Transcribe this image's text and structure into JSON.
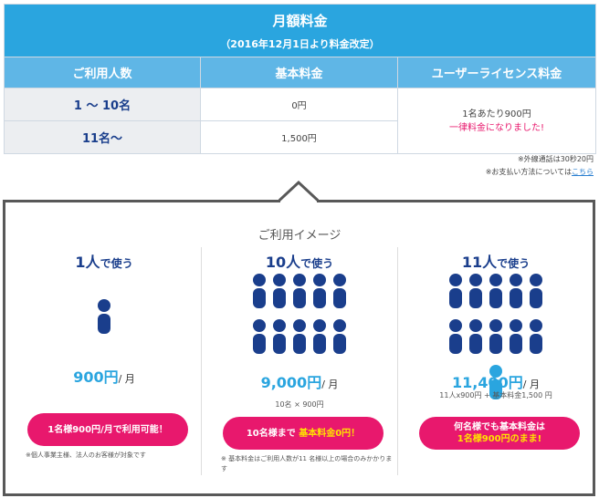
{
  "table": {
    "title": "月額料金",
    "subtitle": "（2016年12月1日より料金改定）",
    "headers": [
      "ご利用人数",
      "基本料金",
      "ユーザーライセンス料金"
    ],
    "rows": [
      {
        "users": "1 ～ 10名",
        "base": "0円"
      },
      {
        "users": "11名～",
        "base": "1,500円"
      }
    ],
    "license": {
      "line1": "1名あたり900円",
      "line2": "一律料金になりました!"
    }
  },
  "notes": {
    "line1": "※外線通話は30秒20円",
    "line2_prefix": "※お支払い方法については",
    "line2_link": "こちら"
  },
  "image_box": {
    "title": "ご利用イメージ",
    "columns": [
      {
        "num": "1人",
        "suffix": "で使う",
        "people_dark": 1,
        "people_light": 0,
        "price": "900円",
        "unit": "/ 月",
        "breakdown": "",
        "pill_line1": "1名様900円/月で利用可能！",
        "pill_prefix": "",
        "pill_highlight": "",
        "note": "※個人事業主様、法人のお客様が対象です"
      },
      {
        "num": "10人",
        "suffix": "で使う",
        "people_dark": 10,
        "people_light": 0,
        "price": "9,000円",
        "unit": "/ 月",
        "breakdown": "10名 × 900円",
        "pill_line1": "",
        "pill_prefix": "10名様まで ",
        "pill_highlight": "基本料金0円！",
        "note": "※ 基本料金はご利用人数が11 名様以上の場合のみかかります"
      },
      {
        "num": "11人",
        "suffix": "で使う",
        "people_dark": 10,
        "people_light": 1,
        "price": "11,400円",
        "unit": "/ 月",
        "breakdown": "11人x900円 + 基本料金1,500 円",
        "pill_line1": "何名様でも基本料金は",
        "pill_prefix": "",
        "pill_highlight": "1名様900円のまま!",
        "note": ""
      }
    ]
  },
  "colors": {
    "blue": "#2aa5df",
    "navy": "#1a3e8c",
    "pink": "#e8186d",
    "yellow": "#ffe200"
  }
}
